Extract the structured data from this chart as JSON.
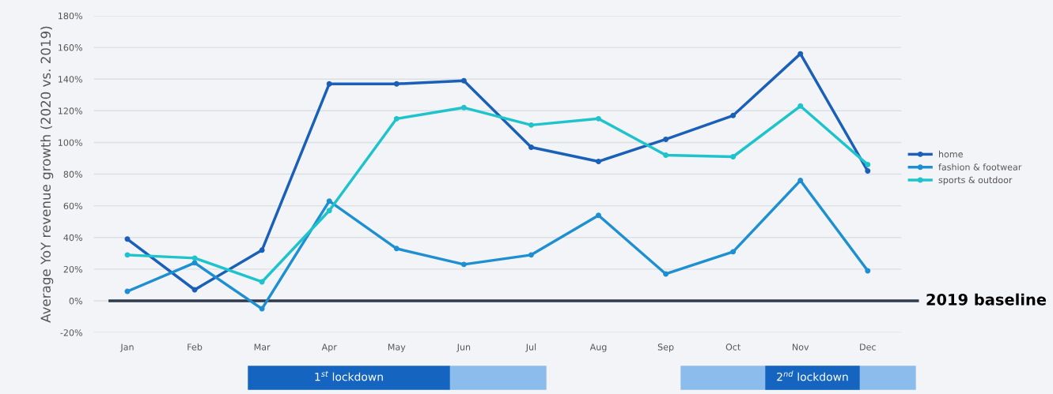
{
  "chart_data": {
    "type": "line",
    "ylabel": "Average YoY revenue growth (2020 vs. 2019)",
    "categories": [
      "Jan",
      "Feb",
      "Mar",
      "Apr",
      "May",
      "Jun",
      "Jul",
      "Aug",
      "Sep",
      "Oct",
      "Nov",
      "Dec"
    ],
    "series": [
      {
        "name": "home",
        "color": "#1a5fb8",
        "values": [
          39,
          7,
          32,
          137,
          137,
          139,
          97,
          88,
          102,
          117,
          156,
          82
        ]
      },
      {
        "name": "fashion & footwear",
        "color": "#1e8fd0",
        "values": [
          6,
          24,
          -5,
          63,
          33,
          23,
          29,
          54,
          17,
          31,
          76,
          19
        ]
      },
      {
        "name": "sports & outdoor",
        "color": "#1fc3cc",
        "values": [
          29,
          27,
          12,
          57,
          115,
          122,
          111,
          115,
          92,
          91,
          123,
          86
        ]
      }
    ],
    "ylim": [
      -20,
      180
    ],
    "yticks": [
      {
        "value": -20,
        "label": "-20%"
      },
      {
        "value": 0,
        "label": "0%"
      },
      {
        "value": 20,
        "label": "20%"
      },
      {
        "value": 40,
        "label": "40%"
      },
      {
        "value": 60,
        "label": "60%"
      },
      {
        "value": 80,
        "label": "80%"
      },
      {
        "value": 100,
        "label": "100%"
      },
      {
        "value": 120,
        "label": "120%"
      },
      {
        "value": 140,
        "label": "140%"
      },
      {
        "value": 160,
        "label": "160%"
      },
      {
        "value": 180,
        "label": "180%"
      }
    ],
    "grid": "y",
    "legend": "right",
    "marker": "circle",
    "line_style": "solid",
    "ref_lines": [
      {
        "axis": "y",
        "value": 0,
        "label": "2019 baseline",
        "color": "#2e3a4d"
      }
    ],
    "annotations": [
      "1$^{st}$ lockdown",
      "2$^{nd}$ lockdown"
    ]
  }
}
